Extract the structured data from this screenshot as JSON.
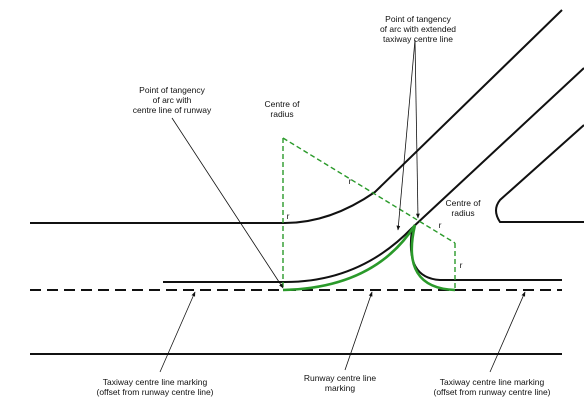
{
  "labels": {
    "tangency_taxiway": [
      "Point of tangency",
      "of arc with extended",
      "taxiway centre line"
    ],
    "tangency_runway": [
      "Point of tangency",
      "of arc with",
      "centre line of runway"
    ],
    "centre_left": [
      "Centre of",
      "radius"
    ],
    "centre_right": [
      "Centre of",
      "radius"
    ],
    "radius_marks": [
      "r",
      "r",
      "r",
      "r"
    ],
    "taxiway_marking_left": [
      "Taxiway centre line marking",
      "(offset from runway centre line)"
    ],
    "runway_marking": [
      "Runway centre line",
      "marking"
    ],
    "taxiway_marking_right": [
      "Taxiway centre line marking",
      "(offset from runway centre line)"
    ]
  }
}
